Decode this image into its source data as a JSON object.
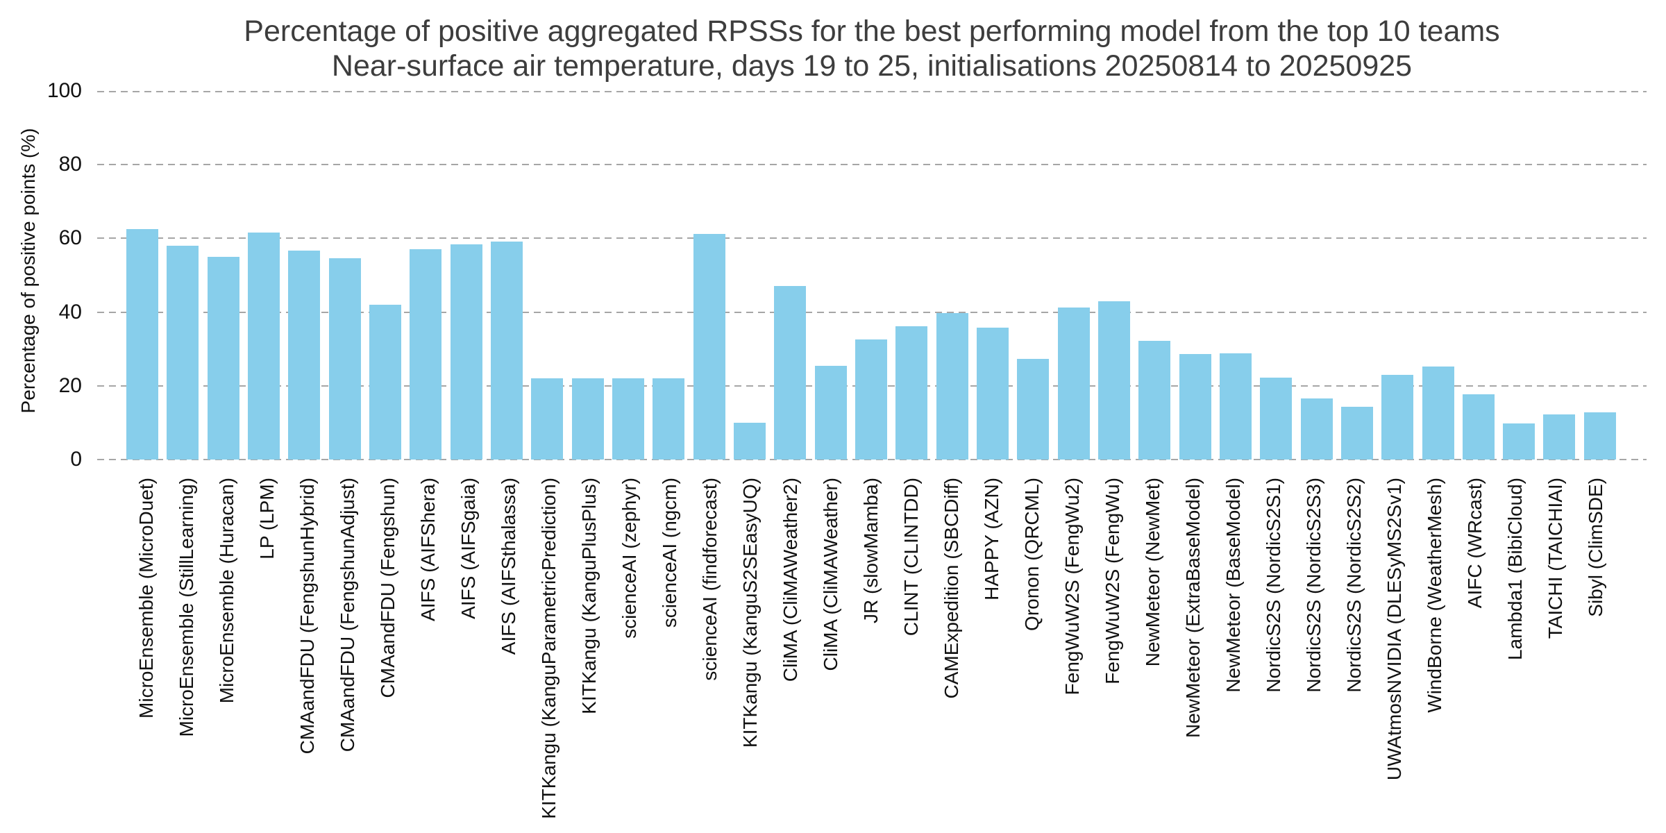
{
  "chart_data": {
    "type": "bar",
    "title": "Percentage of positive aggregated RPSSs for the best performing model from the top 10 teams",
    "subtitle": "Near-surface air temperature, days 19 to 25, initialisations 20250814 to 20250925",
    "xlabel": "",
    "ylabel": "Percentage of positive points (%)",
    "ylim": [
      0,
      100
    ],
    "yticks": [
      0,
      20,
      40,
      60,
      80,
      100
    ],
    "grid": "horizontal dashed gridlines on, no axis spines, no legend",
    "bar_color": "#87CEEB",
    "gridline_color": "#a6a6a6",
    "title_color": "#3d3d3d",
    "text_color": "#111111",
    "background_color": "#ffffff",
    "categories": [
      "MicroEnsemble (MicroDuet)",
      "MicroEnsemble (StillLearning)",
      "MicroEnsemble (Huracan)",
      "LP (LPM)",
      "CMAandFDU (FengshunHybrid)",
      "CMAandFDU (FengshunAdjust)",
      "CMAandFDU (Fengshun)",
      "AIFS (AIFShera)",
      "AIFS (AIFSgaia)",
      "AIFS (AIFSthalassa)",
      "KITKangu (KanguParametricPrediction)",
      "KITKangu (KanguPlusPlus)",
      "scienceAI (zephyr)",
      "scienceAI (ngcm)",
      "scienceAI (findforecast)",
      "KITKangu (KanguS2SEasyUQ)",
      "CliMA (CliMAWeather2)",
      "CliMA (CliMAWeather)",
      "JR (slowMamba)",
      "CLINT (CLINTDD)",
      "CAMExpedition (SBCDiff)",
      "HAPPY (AZN)",
      "Qronon (QRCML)",
      "FengWuW2S (FengWu2)",
      "FengWuW2S (FengWu)",
      "NewMeteor (NewMet)",
      "NewMeteor (ExtraBaseModel)",
      "NewMeteor (BaseModel)",
      "NordicS2S (NordicS2S1)",
      "NordicS2S (NordicS2S3)",
      "NordicS2S (NordicS2S2)",
      "UWAtmosNVIDIA (DLESyMS2Sv1)",
      "WindBorne (WeatherMesh)",
      "AIFC (WRcast)",
      "Lambda1 (BibiCloud)",
      "TAICHI (TAICHIAI)",
      "Sibyl (ClimSDE)"
    ],
    "values": [
      62.6,
      58.1,
      54.9,
      61.6,
      56.6,
      54.7,
      42.0,
      57.0,
      58.3,
      59.2,
      22.1,
      22.1,
      22.1,
      22.1,
      61.2,
      9.9,
      47.0,
      25.4,
      32.5,
      36.2,
      39.7,
      35.8,
      27.4,
      41.2,
      42.9,
      32.3,
      28.7,
      28.8,
      22.3,
      16.6,
      14.3,
      22.9,
      25.3,
      17.7,
      9.8,
      12.2,
      12.9
    ]
  }
}
